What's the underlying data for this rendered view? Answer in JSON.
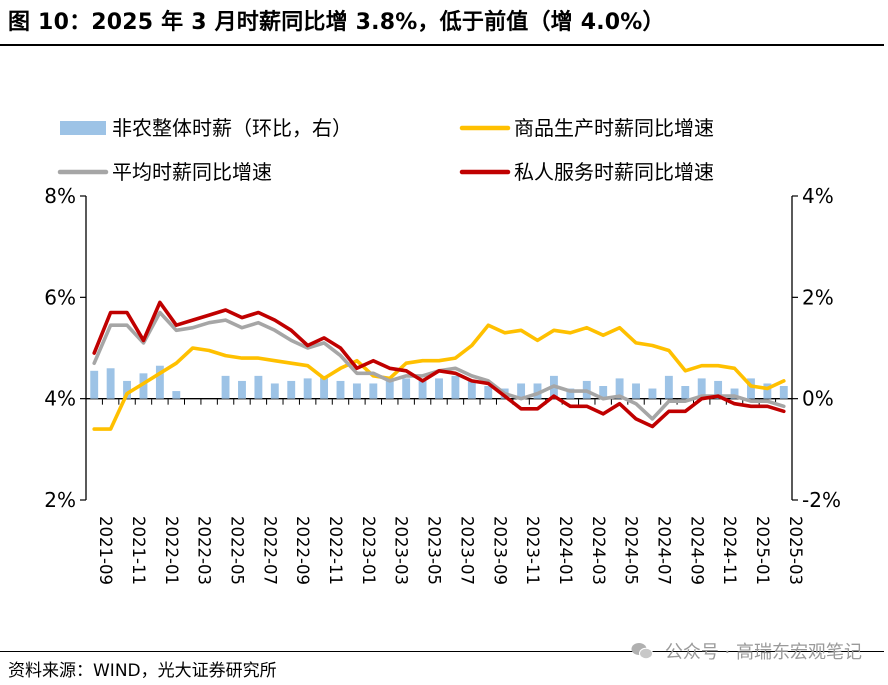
{
  "title": "图 10：2025 年 3 月时薪同比增 3.8%，低于前值（增 4.0%）",
  "source": "资料来源：WIND，光大证券研究所",
  "watermark": "公众号 · 高瑞东宏观笔记",
  "colors": {
    "bars": "#9dc3e6",
    "goods": "#ffc000",
    "average": "#a6a6a6",
    "services": "#c00000"
  },
  "chart_data": {
    "type": "line",
    "x": [
      "2021-09",
      "2021-10",
      "2021-11",
      "2021-12",
      "2022-01",
      "2022-02",
      "2022-03",
      "2022-04",
      "2022-05",
      "2022-06",
      "2022-07",
      "2022-08",
      "2022-09",
      "2022-10",
      "2022-11",
      "2022-12",
      "2023-01",
      "2023-02",
      "2023-03",
      "2023-04",
      "2023-05",
      "2023-06",
      "2023-07",
      "2023-08",
      "2023-09",
      "2023-10",
      "2023-11",
      "2023-12",
      "2024-01",
      "2024-02",
      "2024-03",
      "2024-04",
      "2024-05",
      "2024-06",
      "2024-07",
      "2024-08",
      "2024-09",
      "2024-10",
      "2024-11",
      "2024-12",
      "2025-01",
      "2025-02",
      "2025-03"
    ],
    "x_tick_labels": [
      "2021-09",
      "2021-11",
      "2022-01",
      "2022-03",
      "2022-05",
      "2022-07",
      "2022-09",
      "2022-11",
      "2023-01",
      "2023-03",
      "2023-05",
      "2023-07",
      "2023-09",
      "2023-11",
      "2024-01",
      "2024-03",
      "2024-05",
      "2024-07",
      "2024-09",
      "2024-11",
      "2025-01",
      "2025-03"
    ],
    "series": [
      {
        "name": "非农整体时薪（环比，右）",
        "type": "bar",
        "axis": "right",
        "values": [
          0.55,
          0.6,
          0.35,
          0.5,
          0.65,
          0.15,
          0.0,
          0.0,
          0.45,
          0.35,
          0.45,
          0.3,
          0.35,
          0.4,
          0.45,
          0.35,
          0.3,
          0.3,
          0.35,
          0.4,
          0.35,
          0.4,
          0.45,
          0.35,
          0.25,
          0.2,
          0.3,
          0.3,
          0.45,
          0.2,
          0.35,
          0.25,
          0.4,
          0.3,
          0.2,
          0.45,
          0.25,
          0.4,
          0.35,
          0.2,
          0.4,
          0.3,
          0.25
        ]
      },
      {
        "name": "商品生产时薪同比增速",
        "type": "line",
        "axis": "left",
        "values": [
          3.4,
          3.4,
          4.1,
          4.3,
          4.5,
          4.7,
          5.0,
          4.95,
          4.85,
          4.8,
          4.8,
          4.75,
          4.7,
          4.65,
          4.4,
          4.6,
          4.75,
          4.45,
          4.4,
          4.7,
          4.75,
          4.75,
          4.8,
          5.05,
          5.45,
          5.3,
          5.35,
          5.15,
          5.35,
          5.3,
          5.4,
          5.25,
          5.4,
          5.1,
          5.05,
          4.95,
          4.55,
          4.65,
          4.65,
          4.6,
          4.25,
          4.2,
          4.35
        ]
      },
      {
        "name": "平均时薪同比增速",
        "type": "line",
        "axis": "left",
        "values": [
          4.7,
          5.45,
          5.45,
          5.1,
          5.7,
          5.35,
          5.4,
          5.5,
          5.55,
          5.4,
          5.5,
          5.35,
          5.15,
          5.0,
          5.1,
          4.85,
          4.5,
          4.5,
          4.35,
          4.45,
          4.45,
          4.55,
          4.6,
          4.45,
          4.35,
          4.1,
          4.0,
          4.1,
          4.25,
          4.15,
          4.15,
          4.0,
          4.05,
          3.9,
          3.6,
          3.95,
          3.95,
          4.05,
          4.05,
          4.05,
          3.95,
          3.95,
          3.85
        ]
      },
      {
        "name": "私人服务时薪同比增速",
        "type": "line",
        "axis": "left",
        "values": [
          4.9,
          5.7,
          5.7,
          5.15,
          5.9,
          5.45,
          5.55,
          5.65,
          5.75,
          5.6,
          5.7,
          5.55,
          5.35,
          5.05,
          5.2,
          5.0,
          4.6,
          4.75,
          4.6,
          4.55,
          4.35,
          4.55,
          4.5,
          4.35,
          4.3,
          4.05,
          3.8,
          3.8,
          4.05,
          3.85,
          3.85,
          3.7,
          3.9,
          3.6,
          3.45,
          3.75,
          3.75,
          4.0,
          4.05,
          3.9,
          3.85,
          3.85,
          3.75
        ]
      }
    ],
    "y_left": {
      "range": [
        2,
        8
      ],
      "ticks": [
        "2%",
        "4%",
        "6%",
        "8%"
      ]
    },
    "y_right": {
      "range": [
        -2,
        4
      ],
      "ticks": [
        "-2%",
        "0%",
        "2%",
        "4%"
      ]
    },
    "legend_position": "top",
    "grid": false
  }
}
